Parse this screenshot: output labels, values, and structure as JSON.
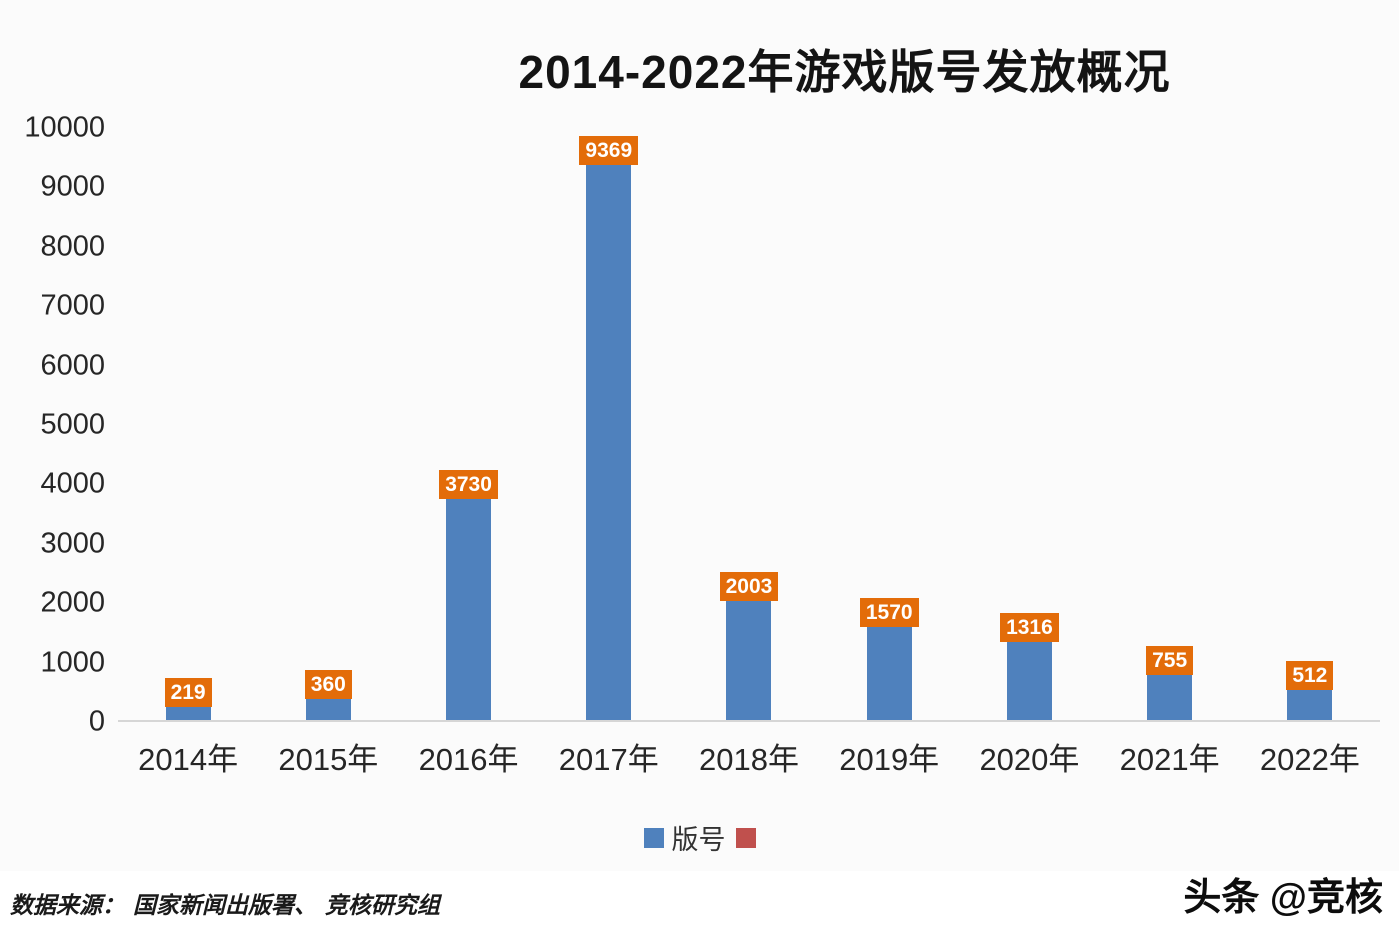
{
  "title": "2014-2022年游戏版号发放概况",
  "chart_data": {
    "type": "bar",
    "title": "2014-2022年游戏版号发放概况",
    "categories": [
      "2014年",
      "2015年",
      "2016年",
      "2017年",
      "2018年",
      "2019年",
      "2020年",
      "2021年",
      "2022年"
    ],
    "series": [
      {
        "name": "版号",
        "values": [
          219,
          360,
          3730,
          9369,
          2003,
          1570,
          1316,
          755,
          512
        ]
      }
    ],
    "xlabel": "",
    "ylabel": "",
    "ylim": [
      0,
      10000
    ],
    "yticks": [
      0,
      1000,
      2000,
      3000,
      4000,
      5000,
      6000,
      7000,
      8000,
      9000,
      10000
    ],
    "grid": false,
    "legend_position": "bottom",
    "legend": [
      {
        "label": "版号",
        "color": "#4f81bd"
      },
      {
        "label": "",
        "color": "#c0504d"
      }
    ],
    "bar_color": "#4f81bd",
    "value_label_bg": "#e36c09",
    "value_label_color": "#ffffff"
  },
  "footer": {
    "source": "数据来源：  国家新闻出版署、  竞核研究组",
    "watermark": "头条 @竞核"
  }
}
